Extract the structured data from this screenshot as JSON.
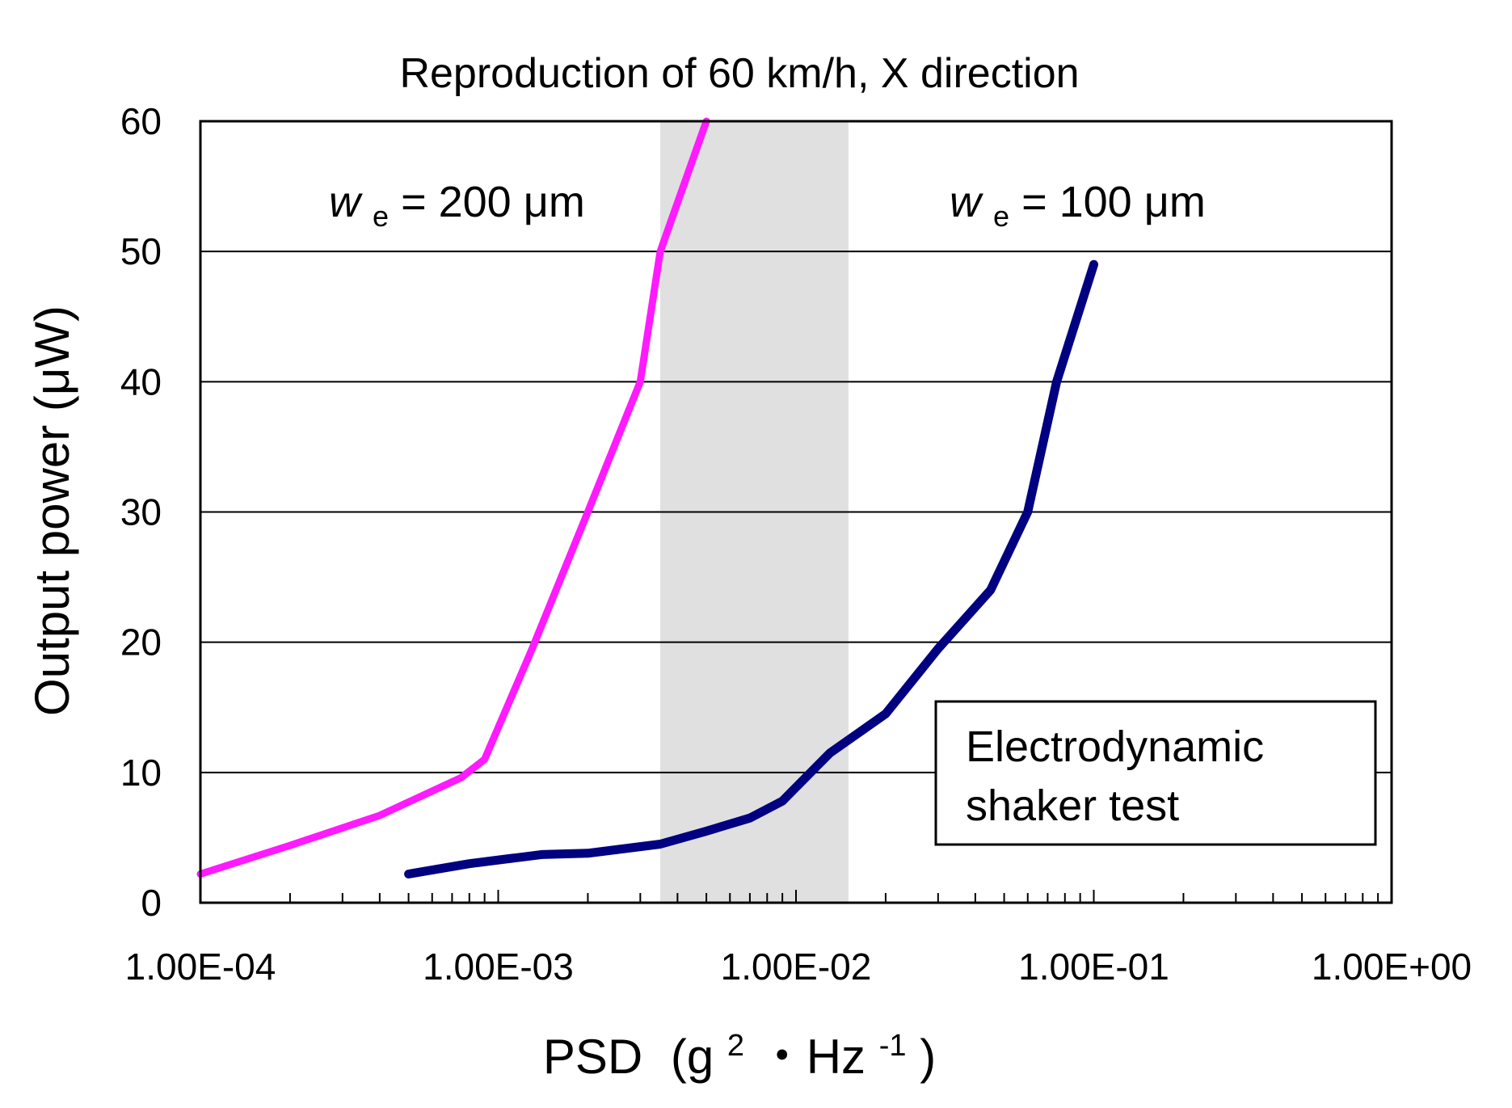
{
  "chart_data": {
    "type": "line",
    "title": "Reproduction of 60 km/h, X direction",
    "xlabel": "PSD",
    "xlabel_unit_open": "(g",
    "xlabel_unit_sup1": "2",
    "xlabel_unit_mid": "・Hz",
    "xlabel_unit_sup2": "-1",
    "xlabel_unit_close": ")",
    "ylabel": "Output power (μW)",
    "x_scale": "log",
    "xlim": [
      0.0001,
      1
    ],
    "ylim": [
      0,
      60
    ],
    "x_ticks": [
      "1.00E-04",
      "1.00E-03",
      "1.00E-02",
      "1.00E-01",
      "1.00E+00"
    ],
    "y_ticks": [
      "0",
      "10",
      "20",
      "30",
      "40",
      "50",
      "60"
    ],
    "horizontal_gridlines": true,
    "shaded_band": {
      "x_range": [
        0.0035,
        0.015
      ],
      "color": "#e0e0e0"
    },
    "series": [
      {
        "name": "we = 200 μm",
        "label_main": "w",
        "label_sub": "e",
        "label_rest": " = 200 μm",
        "color": "#ff1aff",
        "x": [
          0.0001,
          0.0002,
          0.0004,
          0.00075,
          0.0009,
          0.0013,
          0.002,
          0.003,
          0.0035,
          0.005
        ],
        "y": [
          2.2,
          4.4,
          6.7,
          9.6,
          11.0,
          19.5,
          30.0,
          40.0,
          50.0,
          60.0
        ]
      },
      {
        "name": "we = 100 μm",
        "label_main": "w",
        "label_sub": "e",
        "label_rest": " = 100 μm",
        "color": "#000080",
        "x": [
          0.0005,
          0.0008,
          0.0014,
          0.002,
          0.0035,
          0.005,
          0.007,
          0.009,
          0.013,
          0.02,
          0.03,
          0.045,
          0.06,
          0.075,
          0.1
        ],
        "y": [
          2.2,
          3.0,
          3.7,
          3.8,
          4.5,
          5.5,
          6.5,
          7.8,
          11.5,
          14.5,
          19.5,
          24.0,
          30.0,
          40.0,
          49.0
        ]
      }
    ],
    "legend_box": {
      "line1": "Electrodynamic",
      "line2": "shaker test",
      "placement": "bottom-right"
    }
  }
}
